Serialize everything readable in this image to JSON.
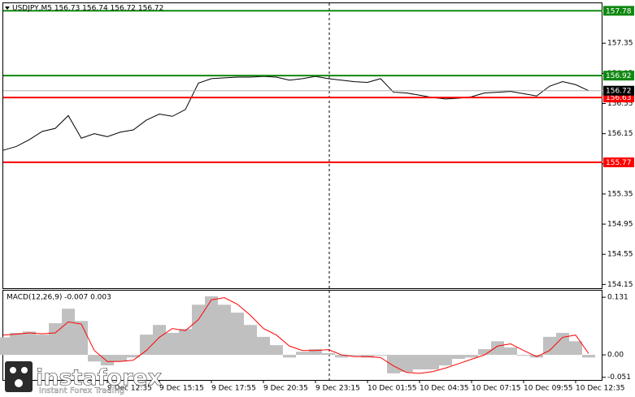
{
  "chart_data": [
    {
      "type": "line",
      "title": "USDJPY,M5  156.73 156.74 156.72 156.72",
      "series": [
        {
          "color": "#000000",
          "values": [
            155.93,
            155.98,
            156.07,
            156.18,
            156.22,
            156.39,
            156.09,
            156.15,
            156.11,
            156.17,
            156.2,
            156.33,
            156.41,
            156.38,
            156.47,
            156.82,
            156.88,
            156.89,
            156.9,
            156.9,
            156.91,
            156.9,
            156.86,
            156.88,
            156.91,
            156.88,
            156.86,
            156.84,
            156.83,
            156.88,
            156.7,
            156.69,
            156.66,
            156.63,
            156.61,
            156.62,
            156.64,
            156.69,
            156.7,
            156.71,
            156.68,
            156.65,
            156.78,
            156.84,
            156.8,
            156.72
          ]
        }
      ],
      "levels": [
        {
          "value": 157.78,
          "color": "#118811"
        },
        {
          "value": 156.92,
          "color": "#118811"
        },
        {
          "value": 156.63,
          "color": "#ff0000"
        },
        {
          "value": 155.77,
          "color": "#ff0000"
        },
        {
          "value": 156.72,
          "color": "#000000"
        }
      ],
      "ylim": [
        154.1,
        157.88
      ],
      "yticks": [
        157.35,
        156.95,
        156.55,
        156.15,
        155.75,
        155.35,
        154.95,
        154.55,
        154.15
      ]
    },
    {
      "type": "macd",
      "title": "MACD(12,26,9) -0.007 0.003",
      "x": [
        null,
        null,
        null,
        null,
        null,
        null,
        null,
        null,
        "9 Dec 12:35",
        null,
        null,
        null,
        "9 Dec 15:15",
        null,
        null,
        null,
        "9 Dec 17:55",
        null,
        null,
        null,
        "9 Dec 20:35",
        null,
        null,
        null,
        "9 Dec 23:15",
        null,
        null,
        null,
        "10 Dec 01:55",
        null,
        null,
        null,
        "10 Dec 04:35",
        null,
        null,
        null,
        "10 Dec 07:15",
        null,
        null,
        null,
        "10 Dec 09:55",
        null,
        null,
        null,
        "10 Dec 12:35",
        null
      ],
      "series": [
        {
          "type": "histogram",
          "color": "#c0c0c0",
          "values": [
            0.04,
            0.05,
            0.053,
            0.046,
            0.072,
            0.105,
            0.077,
            -0.015,
            -0.024,
            -0.015,
            -0.006,
            0.046,
            0.068,
            0.05,
            0.059,
            0.114,
            0.133,
            0.114,
            0.096,
            0.068,
            0.041,
            0.022,
            -0.006,
            0.007,
            0.013,
            0.004,
            -0.006,
            -0.002,
            -0.006,
            -0.002,
            -0.042,
            -0.039,
            -0.033,
            -0.033,
            -0.024,
            -0.009,
            -0.006,
            0.013,
            0.031,
            0.017,
            -0.002,
            -0.006,
            0.041,
            0.05,
            0.031,
            -0.006
          ]
        },
        {
          "type": "line",
          "color": "#ff0000",
          "values": [
            0.045,
            0.047,
            0.05,
            0.048,
            0.05,
            0.075,
            0.07,
            0.01,
            -0.015,
            -0.015,
            -0.012,
            0.01,
            0.04,
            0.06,
            0.055,
            0.08,
            0.125,
            0.13,
            0.115,
            0.09,
            0.06,
            0.045,
            0.02,
            0.01,
            0.01,
            0.012,
            0,
            -0.004,
            -0.004,
            -0.006,
            -0.025,
            -0.04,
            -0.042,
            -0.038,
            -0.03,
            -0.02,
            -0.01,
            0,
            0.02,
            0.025,
            0.01,
            -0.004,
            0.01,
            0.04,
            0.045,
            0.003
          ]
        }
      ],
      "ylim": [
        -0.057,
        0.146
      ],
      "yticks": [
        0.131,
        {
          "value": 0,
          "label": "0.00"
        },
        -0.051
      ]
    }
  ],
  "watermark": {
    "brand": "instaforex",
    "tagline": "Instant Forex Trading"
  }
}
